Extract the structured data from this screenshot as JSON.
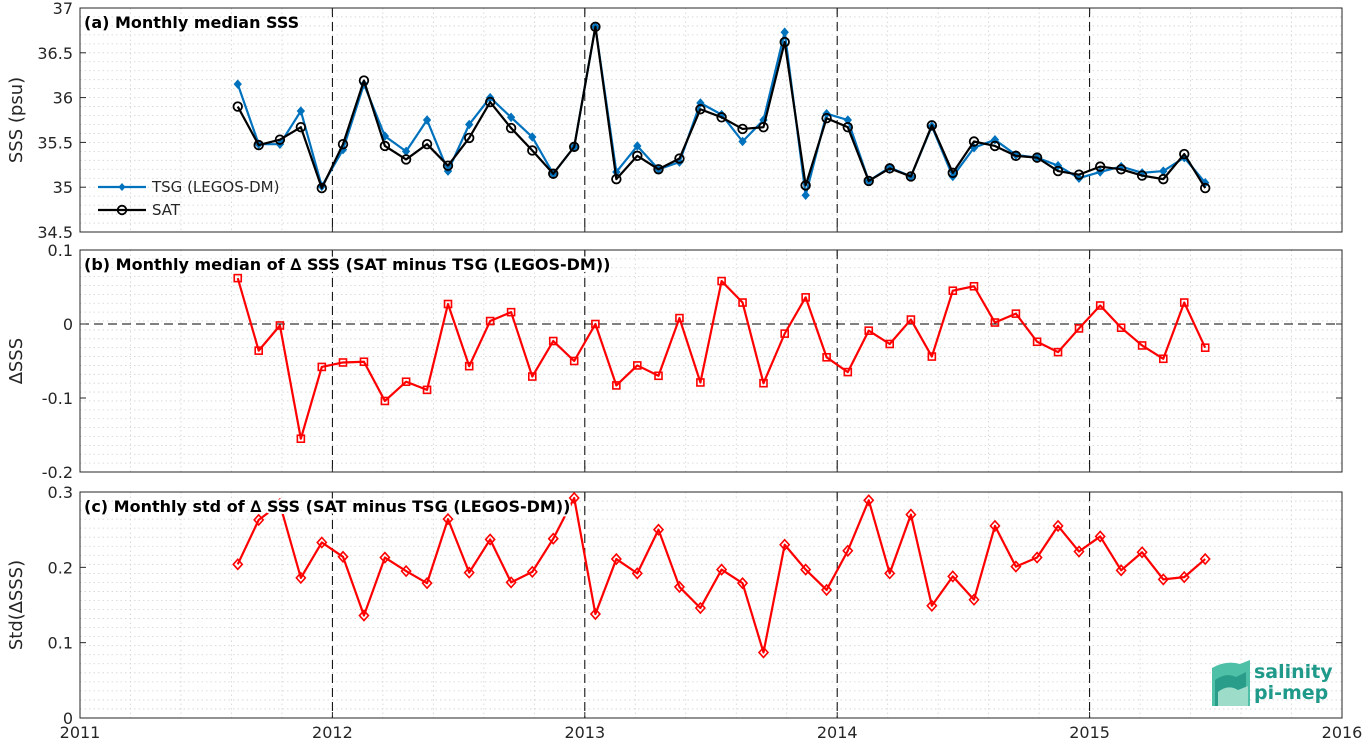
{
  "logo": {
    "line1": "salinity",
    "line2": "pi-mep",
    "color": "#1f9a8a"
  },
  "chart_data": [
    {
      "type": "line",
      "title": "(a) Monthly median SSS",
      "ylabel": "SSS (psu)",
      "xlim": [
        2011,
        2016
      ],
      "ylim": [
        34.5,
        37
      ],
      "yticks": [
        "34.5",
        "35",
        "35.5",
        "36",
        "36.5",
        "37"
      ],
      "ytick_values": [
        34.5,
        35,
        35.5,
        36,
        36.5,
        37
      ],
      "xticks": [
        "2011",
        "2012",
        "2013",
        "2014",
        "2015",
        "2016"
      ],
      "xtick_values": [
        2011,
        2012,
        2013,
        2014,
        2015,
        2016
      ],
      "show_xtick_labels": false,
      "dashed_verticals": [
        2012,
        2013,
        2014,
        2015
      ],
      "legend": "left",
      "x": [
        2011.625,
        2011.708,
        2011.792,
        2011.875,
        2011.958,
        2012.042,
        2012.125,
        2012.208,
        2012.292,
        2012.375,
        2012.458,
        2012.542,
        2012.625,
        2012.708,
        2012.792,
        2012.875,
        2012.958,
        2013.042,
        2013.125,
        2013.208,
        2013.292,
        2013.375,
        2013.458,
        2013.542,
        2013.625,
        2013.708,
        2013.792,
        2013.875,
        2013.958,
        2014.042,
        2014.125,
        2014.208,
        2014.292,
        2014.375,
        2014.458,
        2014.542,
        2014.625,
        2014.708,
        2014.792,
        2014.875,
        2014.958,
        2015.042,
        2015.125,
        2015.208,
        2015.292,
        2015.375,
        2015.458
      ],
      "series": [
        {
          "name": "TSG (LEGOS-DM)",
          "color": "#0072bd",
          "marker": "diamond-filled",
          "values": [
            36.15,
            35.48,
            35.48,
            35.85,
            35.01,
            35.42,
            36.15,
            35.57,
            35.4,
            35.75,
            35.18,
            35.7,
            36.0,
            35.78,
            35.56,
            35.15,
            35.45,
            36.79,
            35.17,
            35.46,
            35.2,
            35.28,
            35.94,
            35.81,
            35.51,
            35.75,
            36.73,
            34.91,
            35.82,
            35.75,
            35.07,
            35.22,
            35.12,
            35.68,
            35.12,
            35.44,
            35.53,
            35.36,
            35.33,
            35.24,
            35.1,
            35.17,
            35.23,
            35.16,
            35.18,
            35.33,
            35.05
          ]
        },
        {
          "name": "SAT",
          "color": "#000000",
          "marker": "circle-open",
          "values": [
            35.9,
            35.47,
            35.53,
            35.67,
            34.99,
            35.48,
            36.19,
            35.46,
            35.31,
            35.48,
            35.24,
            35.55,
            35.95,
            35.66,
            35.41,
            35.15,
            35.45,
            36.79,
            35.09,
            35.35,
            35.2,
            35.32,
            35.87,
            35.78,
            35.65,
            35.67,
            36.62,
            35.02,
            35.77,
            35.67,
            35.07,
            35.21,
            35.12,
            35.69,
            35.16,
            35.51,
            35.46,
            35.35,
            35.33,
            35.18,
            35.14,
            35.23,
            35.2,
            35.13,
            35.09,
            35.37,
            34.99
          ]
        }
      ]
    },
    {
      "type": "line",
      "title": "(b) Monthly median of ∆ SSS (SAT minus TSG (LEGOS-DM))",
      "ylabel": "∆SSS",
      "xlim": [
        2011,
        2016
      ],
      "ylim": [
        -0.2,
        0.1
      ],
      "yticks": [
        "-0.2",
        "-0.1",
        "0",
        "0.1"
      ],
      "ytick_values": [
        -0.2,
        -0.1,
        0,
        0.1
      ],
      "xticks": [
        "2011",
        "2012",
        "2013",
        "2014",
        "2015",
        "2016"
      ],
      "xtick_values": [
        2011,
        2012,
        2013,
        2014,
        2015,
        2016
      ],
      "show_xtick_labels": false,
      "dashed_verticals": [
        2012,
        2013,
        2014,
        2015
      ],
      "dashed_horizontal": 0,
      "x": [
        2011.625,
        2011.708,
        2011.792,
        2011.875,
        2011.958,
        2012.042,
        2012.125,
        2012.208,
        2012.292,
        2012.375,
        2012.458,
        2012.542,
        2012.625,
        2012.708,
        2012.792,
        2012.875,
        2012.958,
        2013.042,
        2013.125,
        2013.208,
        2013.292,
        2013.375,
        2013.458,
        2013.542,
        2013.625,
        2013.708,
        2013.792,
        2013.875,
        2013.958,
        2014.042,
        2014.125,
        2014.208,
        2014.292,
        2014.375,
        2014.458,
        2014.542,
        2014.625,
        2014.708,
        2014.792,
        2014.875,
        2014.958,
        2015.042,
        2015.125,
        2015.208,
        2015.292,
        2015.375,
        2015.458
      ],
      "series": [
        {
          "name": "",
          "color": "#ff0000",
          "marker": "square-open",
          "values": [
            0.062,
            -0.036,
            -0.002,
            -0.155,
            -0.058,
            -0.052,
            -0.051,
            -0.104,
            -0.078,
            -0.089,
            0.027,
            -0.057,
            0.004,
            0.016,
            -0.071,
            -0.023,
            -0.05,
            0.0,
            -0.083,
            -0.056,
            -0.07,
            0.008,
            -0.079,
            0.058,
            0.029,
            -0.08,
            -0.013,
            0.036,
            -0.045,
            -0.065,
            -0.009,
            -0.027,
            0.006,
            -0.044,
            0.045,
            0.051,
            0.002,
            0.014,
            -0.024,
            -0.038,
            -0.006,
            0.025,
            -0.005,
            -0.029,
            -0.047,
            0.029,
            -0.032
          ]
        }
      ]
    },
    {
      "type": "line",
      "title": "(c) Monthly std of ∆ SSS (SAT minus TSG (LEGOS-DM))",
      "ylabel": "Std(∆SSS)",
      "xlim": [
        2011,
        2016
      ],
      "ylim": [
        0,
        0.3
      ],
      "yticks": [
        "0",
        "0.1",
        "0.2",
        "0.3"
      ],
      "ytick_values": [
        0,
        0.1,
        0.2,
        0.3
      ],
      "xticks": [
        "2011",
        "2012",
        "2013",
        "2014",
        "2015",
        "2016"
      ],
      "xtick_values": [
        2011,
        2012,
        2013,
        2014,
        2015,
        2016
      ],
      "show_xtick_labels": true,
      "dashed_verticals": [
        2012,
        2013,
        2014,
        2015
      ],
      "x": [
        2011.625,
        2011.708,
        2011.792,
        2011.875,
        2011.958,
        2012.042,
        2012.125,
        2012.208,
        2012.292,
        2012.375,
        2012.458,
        2012.542,
        2012.625,
        2012.708,
        2012.792,
        2012.875,
        2012.958,
        2013.042,
        2013.125,
        2013.208,
        2013.292,
        2013.375,
        2013.458,
        2013.542,
        2013.625,
        2013.708,
        2013.792,
        2013.875,
        2013.958,
        2014.042,
        2014.125,
        2014.208,
        2014.292,
        2014.375,
        2014.458,
        2014.542,
        2014.625,
        2014.708,
        2014.792,
        2014.875,
        2014.958,
        2015.042,
        2015.125,
        2015.208,
        2015.292,
        2015.375,
        2015.458
      ],
      "series": [
        {
          "name": "",
          "color": "#ff0000",
          "marker": "diamond-open",
          "values": [
            0.204,
            0.263,
            0.284,
            0.186,
            0.233,
            0.214,
            0.136,
            0.213,
            0.195,
            0.179,
            0.264,
            0.193,
            0.237,
            0.18,
            0.194,
            0.238,
            0.292,
            0.138,
            0.211,
            0.192,
            0.25,
            0.174,
            0.146,
            0.197,
            0.179,
            0.087,
            0.23,
            0.197,
            0.17,
            0.222,
            0.289,
            0.192,
            0.27,
            0.149,
            0.188,
            0.157,
            0.255,
            0.201,
            0.213,
            0.255,
            0.221,
            0.241,
            0.196,
            0.22,
            0.184,
            0.187,
            0.211
          ]
        }
      ]
    }
  ]
}
